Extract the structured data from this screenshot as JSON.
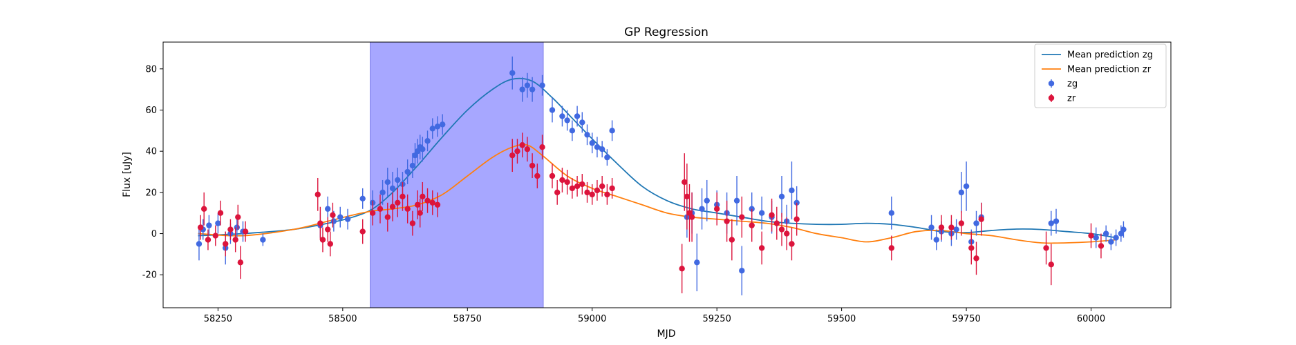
{
  "chart_data": {
    "type": "scatter",
    "title": "GP Regression",
    "xlabel": "MJD",
    "ylabel": "Flux [uJy]",
    "xlim": [
      58140,
      60160
    ],
    "ylim": [
      -36,
      93
    ],
    "x_ticks": [
      58250,
      58500,
      58750,
      59000,
      59250,
      59500,
      59750,
      60000
    ],
    "y_ticks": [
      -20,
      0,
      20,
      40,
      60,
      80
    ],
    "grid": false,
    "legend_position": "top-right",
    "shaded_span": {
      "x": [
        58555,
        58902
      ],
      "color": "#a7a7ff"
    },
    "legend": [
      "Mean prediction zg",
      "Mean prediction zr",
      "zg",
      "zr"
    ],
    "series": [
      {
        "name": "Mean prediction zg",
        "kind": "line",
        "color": "#1f77b4",
        "x": [
          58210,
          58300,
          58400,
          58470,
          58520,
          58560,
          58600,
          58650,
          58700,
          58750,
          58800,
          58840,
          58880,
          58920,
          58960,
          59000,
          59050,
          59100,
          59150,
          59200,
          59250,
          59300,
          59350,
          59400,
          59450,
          59500,
          59550,
          59600,
          59650,
          59700,
          59750,
          59800,
          59850,
          59900,
          59950,
          60000,
          60050
        ],
        "y": [
          -1,
          0,
          2,
          5,
          8,
          12,
          20,
          33,
          47,
          60,
          70,
          75,
          74,
          66,
          56,
          46,
          34,
          23,
          16,
          12,
          10,
          8,
          6,
          5,
          4.5,
          4.5,
          5,
          4.5,
          3,
          1,
          0.5,
          1.5,
          2.2,
          2,
          1,
          0,
          -2
        ]
      },
      {
        "name": "Mean prediction zr",
        "kind": "line",
        "color": "#ff7f0e",
        "x": [
          58210,
          58300,
          58400,
          58470,
          58520,
          58560,
          58600,
          58650,
          58700,
          58750,
          58800,
          58840,
          58870,
          58900,
          58950,
          59000,
          59050,
          59100,
          59150,
          59200,
          59250,
          59300,
          59350,
          59400,
          59450,
          59500,
          59550,
          59600,
          59650,
          59700,
          59750,
          59800,
          59850,
          59900,
          59950,
          60000,
          60050
        ],
        "y": [
          0,
          -1,
          2,
          6,
          9,
          11,
          12,
          14,
          19,
          28,
          37,
          42,
          43,
          38,
          28,
          22,
          18,
          14,
          10,
          8,
          7,
          6,
          5,
          3,
          0,
          -2,
          -4,
          -2,
          1,
          1.5,
          0,
          -1,
          -3,
          -4.5,
          -4.5,
          -4,
          -3
        ]
      },
      {
        "name": "zg",
        "kind": "errorbar",
        "color": "#4169e1",
        "x": [
          58212,
          58220,
          58232,
          58250,
          58265,
          58275,
          58288,
          58300,
          58340,
          58455,
          58470,
          58482,
          58495,
          58510,
          58540,
          58560,
          58580,
          58590,
          58600,
          58610,
          58620,
          58630,
          58640,
          58645,
          58650,
          58655,
          58660,
          58670,
          58680,
          58690,
          58700,
          58840,
          58860,
          58870,
          58880,
          58900,
          58920,
          58940,
          58950,
          58960,
          58970,
          58980,
          58990,
          59000,
          59010,
          59020,
          59030,
          59040,
          59190,
          59200,
          59210,
          59220,
          59230,
          59250,
          59270,
          59290,
          59300,
          59320,
          59340,
          59360,
          59380,
          59390,
          59400,
          59410,
          59600,
          59680,
          59690,
          59700,
          59720,
          59730,
          59740,
          59750,
          59760,
          59770,
          59780,
          59920,
          59930,
          60010,
          60030,
          60040,
          60050,
          60060,
          60065
        ],
        "y": [
          -5,
          2,
          4,
          5,
          -7,
          0,
          3,
          1,
          -3,
          4,
          12,
          6,
          8,
          7,
          17,
          15,
          20,
          25,
          22,
          26,
          24,
          30,
          33,
          38,
          40,
          42,
          41,
          45,
          51,
          52,
          53,
          78,
          70,
          72,
          70,
          72,
          60,
          57,
          55,
          50,
          57,
          54,
          48,
          44,
          42,
          41,
          37,
          50,
          8,
          10,
          -14,
          12,
          16,
          14,
          10,
          16,
          -18,
          12,
          10,
          8,
          18,
          6,
          21,
          15,
          10,
          3,
          -3,
          1,
          0,
          2,
          20,
          23,
          -4,
          5,
          8,
          5,
          6,
          -2,
          0,
          -4,
          -2,
          0,
          2
        ],
        "err": [
          8,
          5,
          5,
          5,
          8,
          5,
          6,
          5,
          3,
          6,
          6,
          5,
          5,
          5,
          5,
          6,
          6,
          7,
          8,
          6,
          6,
          6,
          6,
          6,
          6,
          6,
          6,
          5,
          5,
          5,
          5,
          8,
          6,
          6,
          6,
          5,
          6,
          5,
          5,
          5,
          5,
          5,
          5,
          5,
          5,
          4,
          4,
          5,
          10,
          10,
          14,
          10,
          10,
          7,
          10,
          12,
          12,
          8,
          8,
          8,
          10,
          8,
          14,
          8,
          8,
          6,
          5,
          5,
          6,
          5,
          10,
          12,
          6,
          6,
          7,
          6,
          6,
          5,
          4,
          4,
          4,
          4,
          4
        ]
      },
      {
        "name": "zr",
        "kind": "errorbar",
        "color": "#dc143c",
        "x": [
          58215,
          58222,
          58230,
          58245,
          58255,
          58265,
          58275,
          58285,
          58290,
          58295,
          58305,
          58450,
          58455,
          58460,
          58470,
          58475,
          58480,
          58540,
          58560,
          58575,
          58590,
          58600,
          58610,
          58620,
          58630,
          58640,
          58650,
          58655,
          58660,
          58670,
          58680,
          58690,
          58840,
          58850,
          58860,
          58870,
          58880,
          58890,
          58900,
          58920,
          58930,
          58940,
          58950,
          58960,
          58970,
          58980,
          58990,
          59000,
          59010,
          59020,
          59030,
          59040,
          59180,
          59185,
          59190,
          59195,
          59200,
          59250,
          59270,
          59280,
          59300,
          59320,
          59340,
          59360,
          59370,
          59380,
          59390,
          59400,
          59410,
          59600,
          59700,
          59720,
          59740,
          59760,
          59770,
          59780,
          59910,
          59920,
          60000,
          60020
        ],
        "y": [
          3,
          12,
          -3,
          -1,
          10,
          -5,
          2,
          -3,
          8,
          -14,
          1,
          19,
          5,
          -3,
          2,
          -5,
          9,
          1,
          10,
          12,
          8,
          13,
          15,
          18,
          12,
          5,
          14,
          10,
          18,
          16,
          15,
          14,
          38,
          40,
          43,
          41,
          33,
          28,
          42,
          28,
          20,
          26,
          25,
          22,
          23,
          24,
          20,
          19,
          21,
          23,
          19,
          22,
          -17,
          25,
          18,
          10,
          8,
          12,
          6,
          -3,
          8,
          4,
          -7,
          9,
          5,
          2,
          0,
          -5,
          7,
          -7,
          3,
          3,
          5,
          -7,
          -12,
          7,
          -7,
          -15,
          -1,
          -6
        ],
        "err": [
          6,
          8,
          5,
          5,
          6,
          6,
          5,
          6,
          6,
          8,
          5,
          8,
          8,
          6,
          6,
          6,
          6,
          6,
          6,
          7,
          7,
          7,
          7,
          7,
          7,
          6,
          7,
          7,
          7,
          6,
          6,
          6,
          8,
          6,
          6,
          6,
          6,
          6,
          6,
          6,
          6,
          6,
          6,
          5,
          5,
          5,
          5,
          5,
          5,
          5,
          5,
          5,
          12,
          14,
          16,
          14,
          12,
          8,
          10,
          10,
          10,
          8,
          8,
          8,
          8,
          8,
          8,
          8,
          8,
          6,
          6,
          6,
          6,
          8,
          8,
          8,
          8,
          10,
          6,
          6
        ]
      }
    ]
  }
}
